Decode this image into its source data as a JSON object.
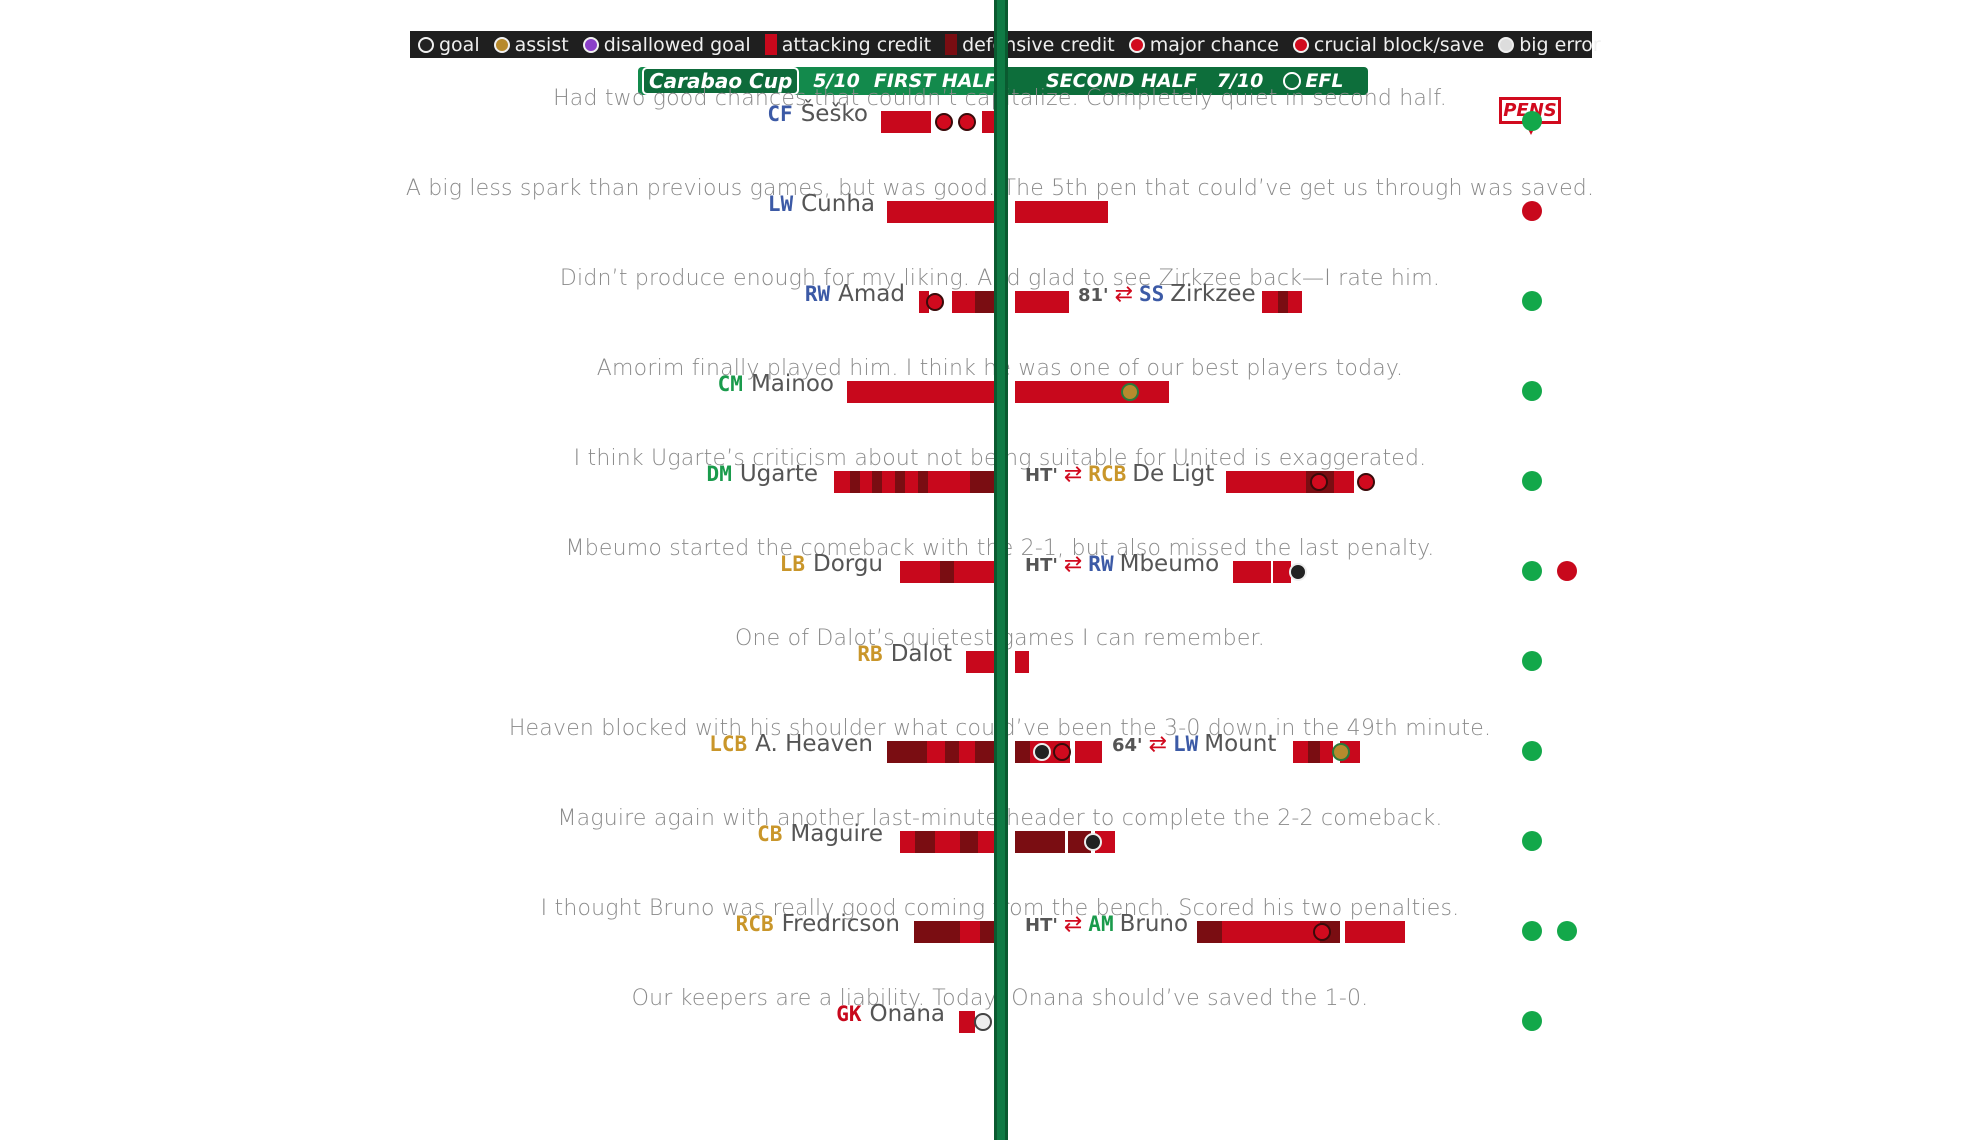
{
  "legend": [
    {
      "icon": "goal-icon",
      "label": "goal",
      "color": "#222222"
    },
    {
      "icon": "assist-icon",
      "label": "assist",
      "color": "#b78a2d"
    },
    {
      "icon": "disallowed-goal-icon",
      "label": "disallowed goal",
      "color": "#8a3fc8"
    },
    {
      "icon": "attacking-credit-swatch",
      "label": "attacking credit",
      "color": "#c8081c"
    },
    {
      "icon": "defensive-credit-swatch",
      "label": "defensive credit",
      "color": "#7a0d12"
    },
    {
      "icon": "major-chance-icon",
      "label": "major chance",
      "color": "#d10a1e"
    },
    {
      "icon": "crucial-block-save-icon",
      "label": "crucial block/save",
      "color": "#d10a1e"
    },
    {
      "icon": "skull-icon",
      "label": "big error",
      "color": "#dddddd"
    }
  ],
  "header": {
    "competition": "Carabao Cup",
    "first_half_rating": "5/10",
    "first_half_label": "FIRST HALF",
    "second_half_label": "SECOND HALF",
    "second_half_rating": "7/10",
    "league": "EFL"
  },
  "pens_label": "PENS",
  "colors": {
    "attack": "#c8081c",
    "defense": "#7a0d12",
    "pen_scored": "#13a84a",
    "pen_missed": "#c8081c",
    "spine": "#0f7a44"
  },
  "players": [
    {
      "comment": "Had two good chances that couldn’t capitalize. Completely quiet in second half.",
      "pos": "CF",
      "pos_color": "#3c5aa6",
      "name": "Šeško",
      "pens": [
        "scored"
      ]
    },
    {
      "comment": "A big less spark than previous games, but was good. The 5th pen that could’ve get us through was saved.",
      "pos": "LW",
      "pos_color": "#3c5aa6",
      "name": "Cunha",
      "pens": [
        "missed"
      ]
    },
    {
      "comment": "Didn’t produce enough for my liking. And glad to see Zirkzee back—I rate him.",
      "pos": "RW",
      "pos_color": "#3c5aa6",
      "name": "Amad",
      "sub": {
        "minute": "81'",
        "pos": "SS",
        "pos_color": "#3c5aa6",
        "name": "Zirkzee"
      },
      "pens": [
        "scored"
      ]
    },
    {
      "comment": "Amorim finally played him. I think he was one of our best players today.",
      "pos": "CM",
      "pos_color": "#1a9b4c",
      "name": "Mainoo",
      "pens": [
        "scored"
      ]
    },
    {
      "comment": "I think Ugarte’s criticism about not being suitable for United is exaggerated.",
      "pos": "DM",
      "pos_color": "#1a9b4c",
      "name": "Ugarte",
      "sub": {
        "minute": "HT'",
        "pos": "RCB",
        "pos_color": "#c9962a",
        "name": "De Ligt"
      },
      "pens": [
        "scored"
      ]
    },
    {
      "comment": "Mbeumo started the comeback with the 2-1, but also missed the last penalty.",
      "pos": "LB",
      "pos_color": "#c9962a",
      "name": "Dorgu",
      "sub": {
        "minute": "HT'",
        "pos": "RW",
        "pos_color": "#3c5aa6",
        "name": "Mbeumo"
      },
      "pens": [
        "scored",
        "missed"
      ]
    },
    {
      "comment": "One of Dalot’s quietest games I can remember.",
      "pos": "RB",
      "pos_color": "#c9962a",
      "name": "Dalot",
      "pens": [
        "scored"
      ]
    },
    {
      "comment": "Heaven blocked with his shoulder what could’ve been the 3-0 down in the 49th minute.",
      "pos": "LCB",
      "pos_color": "#c9962a",
      "name": "A. Heaven",
      "sub": {
        "minute": "64'",
        "pos": "LW",
        "pos_color": "#3c5aa6",
        "name": "Mount"
      },
      "pens": [
        "scored"
      ]
    },
    {
      "comment": "Maguire again with another last-minute header to complete the 2-2 comeback.",
      "pos": "CB",
      "pos_color": "#c9962a",
      "name": "Maguire",
      "pens": [
        "scored"
      ]
    },
    {
      "comment": "I thought Bruno was really good coming from the bench. Scored his two penalties.",
      "pos": "RCB",
      "pos_color": "#c9962a",
      "name": "Fredricson",
      "sub": {
        "minute": "HT'",
        "pos": "AM",
        "pos_color": "#1a9b4c",
        "name": "Bruno"
      },
      "pens": [
        "scored",
        "scored"
      ]
    },
    {
      "comment": "Our keepers are a liability. Today, Onana should’ve saved the 1-0.",
      "pos": "GK",
      "pos_color": "#c8081c",
      "name": "Onana",
      "pens": [
        "scored"
      ]
    }
  ]
}
